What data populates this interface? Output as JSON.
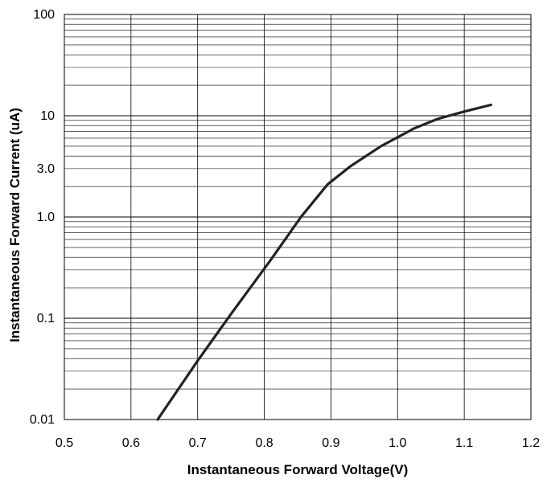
{
  "chart_data": {
    "type": "line",
    "title": "",
    "xlabel": "Instantaneous Forward Voltage(V)",
    "ylabel": "Instantaneous Forward Current (uA)",
    "xlim": [
      0.5,
      1.2
    ],
    "ylim": [
      0.01,
      100
    ],
    "y_scale": "log",
    "grid": true,
    "legend": "none",
    "x_ticks": [
      {
        "value": 0.5,
        "label": "0.5"
      },
      {
        "value": 0.6,
        "label": "0.6"
      },
      {
        "value": 0.7,
        "label": "0.7"
      },
      {
        "value": 0.8,
        "label": "0.8"
      },
      {
        "value": 0.9,
        "label": "0.9"
      },
      {
        "value": 1.0,
        "label": "1.0"
      },
      {
        "value": 1.1,
        "label": "1.1"
      },
      {
        "value": 1.2,
        "label": "1.2"
      }
    ],
    "y_ticks": [
      {
        "value": 0.01,
        "label": "0.01"
      },
      {
        "value": 0.1,
        "label": "0.1"
      },
      {
        "value": 1,
        "label": "1.0"
      },
      {
        "value": 3,
        "label": "3.0"
      },
      {
        "value": 10,
        "label": "10"
      },
      {
        "value": 100,
        "label": "100"
      }
    ],
    "series": [
      {
        "color": "#222222",
        "points": [
          {
            "x": 0.64,
            "y": 0.01
          },
          {
            "x": 0.7,
            "y": 0.038
          },
          {
            "x": 0.75,
            "y": 0.11
          },
          {
            "x": 0.81,
            "y": 0.38
          },
          {
            "x": 0.855,
            "y": 1.0
          },
          {
            "x": 0.895,
            "y": 2.1
          },
          {
            "x": 0.93,
            "y": 3.2
          },
          {
            "x": 0.975,
            "y": 5.0
          },
          {
            "x": 1.025,
            "y": 7.5
          },
          {
            "x": 1.06,
            "y": 9.3
          },
          {
            "x": 1.1,
            "y": 11.0
          },
          {
            "x": 1.14,
            "y": 12.8
          }
        ]
      }
    ]
  }
}
